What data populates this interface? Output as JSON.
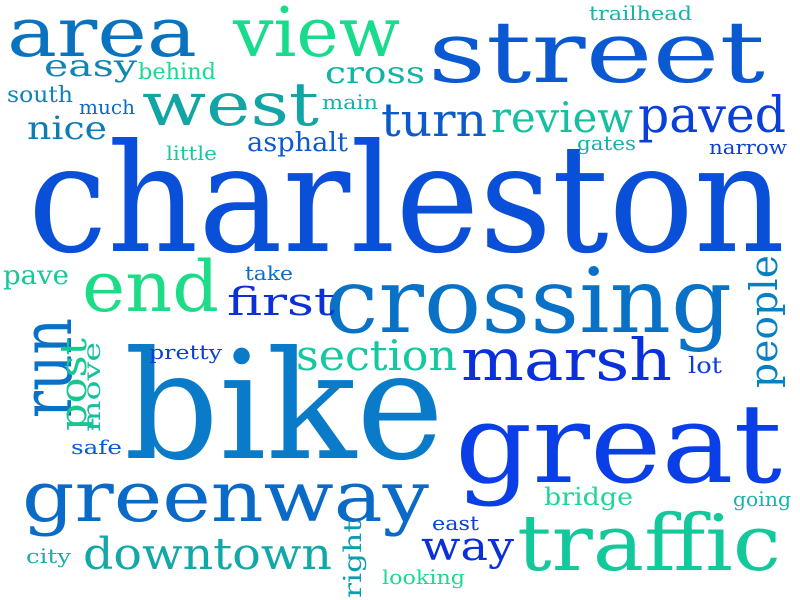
{
  "words": [
    {
      "text": "charleston",
      "color": "#0a4fd8"
    },
    {
      "text": "bike",
      "color": "#0a7bc8"
    },
    {
      "text": "great",
      "color": "#0a3ee6"
    },
    {
      "text": "crossing",
      "color": "#0a72c6"
    },
    {
      "text": "street",
      "color": "#0a58d2"
    },
    {
      "text": "greenway",
      "color": "#0a6ac8"
    },
    {
      "text": "traffic",
      "color": "#13c89a"
    },
    {
      "text": "area",
      "color": "#0a73c0"
    },
    {
      "text": "view",
      "color": "#18dc8c"
    },
    {
      "text": "west",
      "color": "#11a5a5"
    },
    {
      "text": "run",
      "color": "#0a72c6"
    },
    {
      "text": "end",
      "color": "#1ddc88"
    },
    {
      "text": "marsh",
      "color": "#0a30dc"
    },
    {
      "text": "downtown",
      "color": "#13a8a8"
    },
    {
      "text": "paved",
      "color": "#0a40d8"
    },
    {
      "text": "turn",
      "color": "#0a5ac8"
    },
    {
      "text": "review",
      "color": "#14c0a0"
    },
    {
      "text": "section",
      "color": "#14c8a0"
    },
    {
      "text": "people",
      "color": "#0a80c2"
    },
    {
      "text": "first",
      "color": "#0a30d8"
    },
    {
      "text": "way",
      "color": "#0a30d8"
    },
    {
      "text": "post",
      "color": "#16c890"
    },
    {
      "text": "nice",
      "color": "#0f7cb4"
    },
    {
      "text": "easy",
      "color": "#0f86b4"
    },
    {
      "text": "cross",
      "color": "#14b4a4"
    },
    {
      "text": "pave",
      "color": "#16c898"
    },
    {
      "text": "move",
      "color": "#14c0a0"
    },
    {
      "text": "right",
      "color": "#0f9cb0"
    },
    {
      "text": "asphalt",
      "color": "#0a5ad0"
    },
    {
      "text": "bridge",
      "color": "#1dd894"
    },
    {
      "text": "behind",
      "color": "#1dd894"
    },
    {
      "text": "south",
      "color": "#1480b8"
    },
    {
      "text": "much",
      "color": "#0a6cc8"
    },
    {
      "text": "main",
      "color": "#14b4a8"
    },
    {
      "text": "little",
      "color": "#18c8a0"
    },
    {
      "text": "gates",
      "color": "#16b0a8"
    },
    {
      "text": "narrow",
      "color": "#0a40d8"
    },
    {
      "text": "trailhead",
      "color": "#14b4a8"
    },
    {
      "text": "take",
      "color": "#0a6cc8"
    },
    {
      "text": "pretty",
      "color": "#0a40d8"
    },
    {
      "text": "lot",
      "color": "#0a40d8"
    },
    {
      "text": "safe",
      "color": "#0a5ad0"
    },
    {
      "text": "city",
      "color": "#16b0a8"
    },
    {
      "text": "looking",
      "color": "#1dd894"
    },
    {
      "text": "east",
      "color": "#0a40d8"
    },
    {
      "text": "going",
      "color": "#14b4a8"
    }
  ]
}
